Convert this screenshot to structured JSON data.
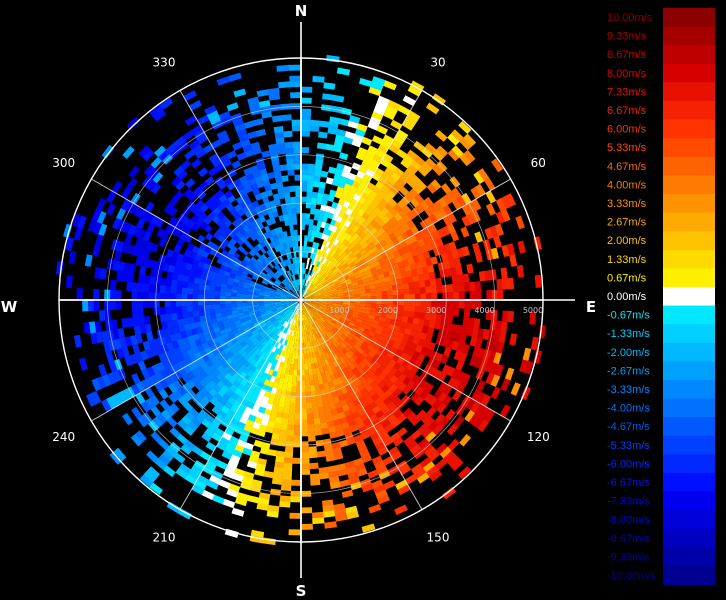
{
  "chart_data": {
    "type": "heatmap",
    "title": "",
    "cardinal_labels": {
      "north": "N",
      "east": "E",
      "south": "S",
      "west": "W"
    },
    "azimuth_labels": [
      {
        "deg": 30,
        "text": "30"
      },
      {
        "deg": 60,
        "text": "60"
      },
      {
        "deg": 120,
        "text": "120"
      },
      {
        "deg": 150,
        "text": "150"
      },
      {
        "deg": 210,
        "text": "210"
      },
      {
        "deg": 240,
        "text": "240"
      },
      {
        "deg": 300,
        "text": "300"
      },
      {
        "deg": 330,
        "text": "330"
      }
    ],
    "range_rings": [
      1000,
      2000,
      3000,
      4000,
      5000
    ],
    "range_labels": [
      "1000",
      "2000",
      "3000",
      "4000",
      "5000"
    ],
    "max_range": 5000,
    "velocity_unit": "m/s",
    "color_scale": {
      "positive": [
        {
          "label": "10.00m/s",
          "value": 10.0,
          "color": "#8b0000"
        },
        {
          "label": "9.33m/s",
          "value": 9.33,
          "color": "#a50000"
        },
        {
          "label": "8.67m/s",
          "value": 8.67,
          "color": "#bf0000"
        },
        {
          "label": "8.00m/s",
          "value": 8.0,
          "color": "#d60000"
        },
        {
          "label": "7.33m/s",
          "value": 7.33,
          "color": "#e81000"
        },
        {
          "label": "6.67m/s",
          "value": 6.67,
          "color": "#f42200"
        },
        {
          "label": "6.00m/s",
          "value": 6.0,
          "color": "#ff3300"
        },
        {
          "label": "5.33m/s",
          "value": 5.33,
          "color": "#ff4a00"
        },
        {
          "label": "4.67m/s",
          "value": 4.67,
          "color": "#ff6200"
        },
        {
          "label": "4.00m/s",
          "value": 4.0,
          "color": "#ff7a00"
        },
        {
          "label": "3.33m/s",
          "value": 3.33,
          "color": "#ff9200"
        },
        {
          "label": "2.67m/s",
          "value": 2.67,
          "color": "#ffaa00"
        },
        {
          "label": "2.00m/s",
          "value": 2.0,
          "color": "#ffc200"
        },
        {
          "label": "1.33m/s",
          "value": 1.33,
          "color": "#ffda00"
        },
        {
          "label": "0.67m/s",
          "value": 0.67,
          "color": "#fff000"
        }
      ],
      "zero": {
        "label": "0.00m/s",
        "value": 0.0,
        "color": "#ffffff"
      },
      "negative": [
        {
          "label": "-0.67m/s",
          "value": -0.67,
          "color": "#00e8ff"
        },
        {
          "label": "-1.33m/s",
          "value": -1.33,
          "color": "#00d0ff"
        },
        {
          "label": "-2.00m/s",
          "value": -2.0,
          "color": "#00b8ff"
        },
        {
          "label": "-2.67m/s",
          "value": -2.67,
          "color": "#00a0ff"
        },
        {
          "label": "-3.33m/s",
          "value": -3.33,
          "color": "#0088ff"
        },
        {
          "label": "-4.00m/s",
          "value": -4.0,
          "color": "#0070ff"
        },
        {
          "label": "-4.67m/s",
          "value": -4.67,
          "color": "#0058ff"
        },
        {
          "label": "-5.33m/s",
          "value": -5.33,
          "color": "#0040ff"
        },
        {
          "label": "-6.00m/s",
          "value": -6.0,
          "color": "#0028ff"
        },
        {
          "label": "-6.67m/s",
          "value": -6.67,
          "color": "#0010ff"
        },
        {
          "label": "-7.33m/s",
          "value": -7.33,
          "color": "#0000f0"
        },
        {
          "label": "-8.00m/s",
          "value": -8.0,
          "color": "#0000d8"
        },
        {
          "label": "-8.67m/s",
          "value": -8.67,
          "color": "#0000c0"
        },
        {
          "label": "-9.33m/s",
          "value": -9.33,
          "color": "#0000a8"
        },
        {
          "label": "-10.00m/s",
          "value": -10.0,
          "color": "#000090"
        }
      ]
    },
    "velocity_pattern": {
      "approaching_sector": "west (blue, negative)",
      "receding_sector": "east (red, positive)",
      "peak_positive": 8.0,
      "peak_negative": -7.5,
      "zero_line_bearings": [
        20,
        200
      ]
    },
    "grid": true
  }
}
